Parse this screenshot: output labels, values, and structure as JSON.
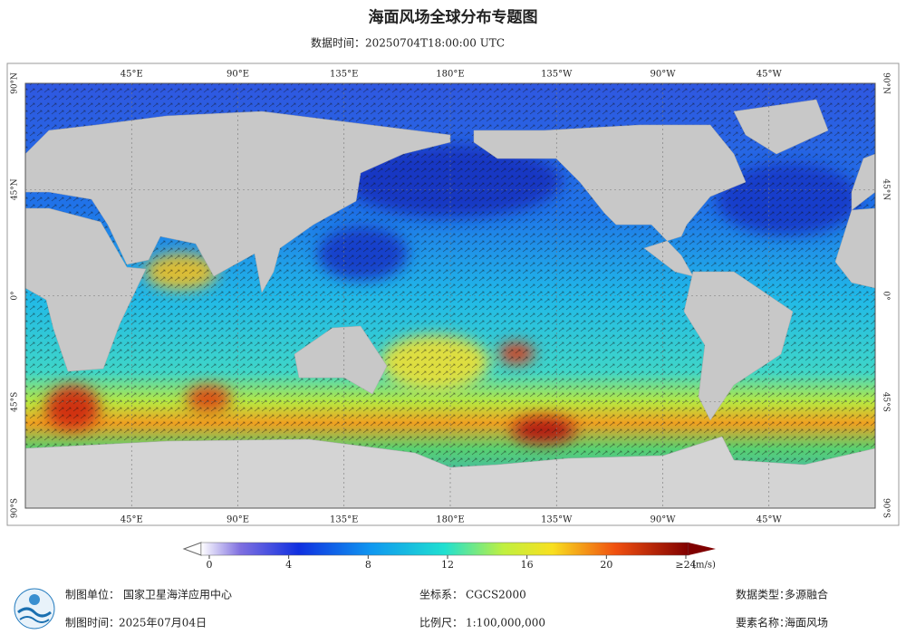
{
  "title": "海面风场全球分布专题图",
  "subtitle": "数据时间：20250704T18:00:00 UTC",
  "map": {
    "lon_labels": [
      "45°E",
      "90°E",
      "135°E",
      "180°E",
      "135°W",
      "90°W",
      "45°W"
    ],
    "lat_labels": [
      "90°N",
      "45°N",
      "0°",
      "45°S",
      "90°S"
    ]
  },
  "legend": {
    "ticks": [
      0,
      4,
      8,
      12,
      16,
      20,
      {
        "value": 24,
        "label": "≥24"
      }
    ],
    "unit": "(m/s)"
  },
  "footer": {
    "unit_label": "制图单位：",
    "unit": "国家卫星海洋应用中心",
    "crs_label": "坐标系：",
    "crs": "CGCS2000",
    "type_label": "数据类型：",
    "type": "多源融合",
    "date_label": "制图时间：",
    "date": "2025年07月04日",
    "scale_label": "比例尺：",
    "scale": "1:100,000,000",
    "element_label": "要素名称：",
    "element": "海面风场"
  }
}
